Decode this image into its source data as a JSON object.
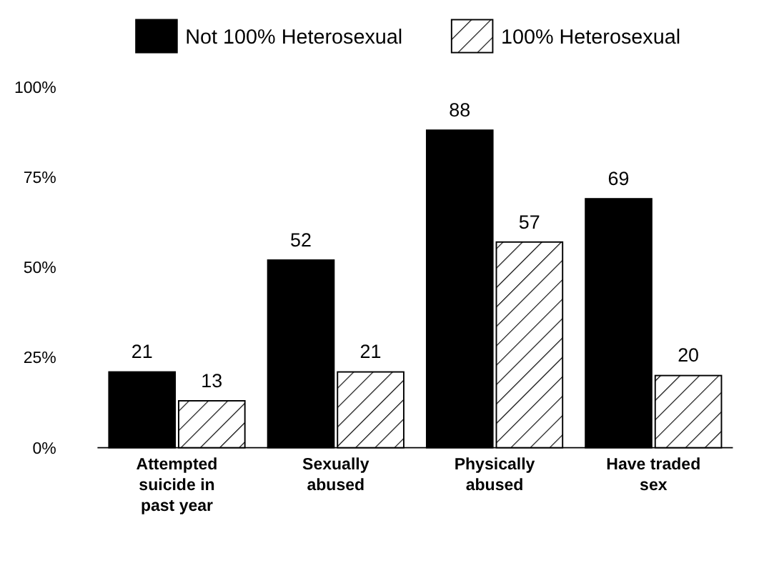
{
  "chart_data": {
    "type": "bar",
    "categories": [
      "Attempted suicide in past year",
      "Sexually abused",
      "Physically abused",
      "Have traded sex"
    ],
    "series": [
      {
        "name": "Not 100% Heterosexual",
        "color": "#000000",
        "values": [
          21,
          52,
          88,
          69
        ]
      },
      {
        "name": "100% Heterosexual",
        "color": "#000000",
        "values": [
          13,
          21,
          57,
          20
        ]
      }
    ],
    "ylim": [
      0,
      100
    ],
    "yticks": [
      {
        "value": 0,
        "label": "0%"
      },
      {
        "value": 25,
        "label": "25%"
      },
      {
        "value": 50,
        "label": "50%"
      },
      {
        "value": 75,
        "label": "75%"
      },
      {
        "value": 100,
        "label": "100%"
      }
    ],
    "data_labels": true,
    "legend": "top"
  }
}
